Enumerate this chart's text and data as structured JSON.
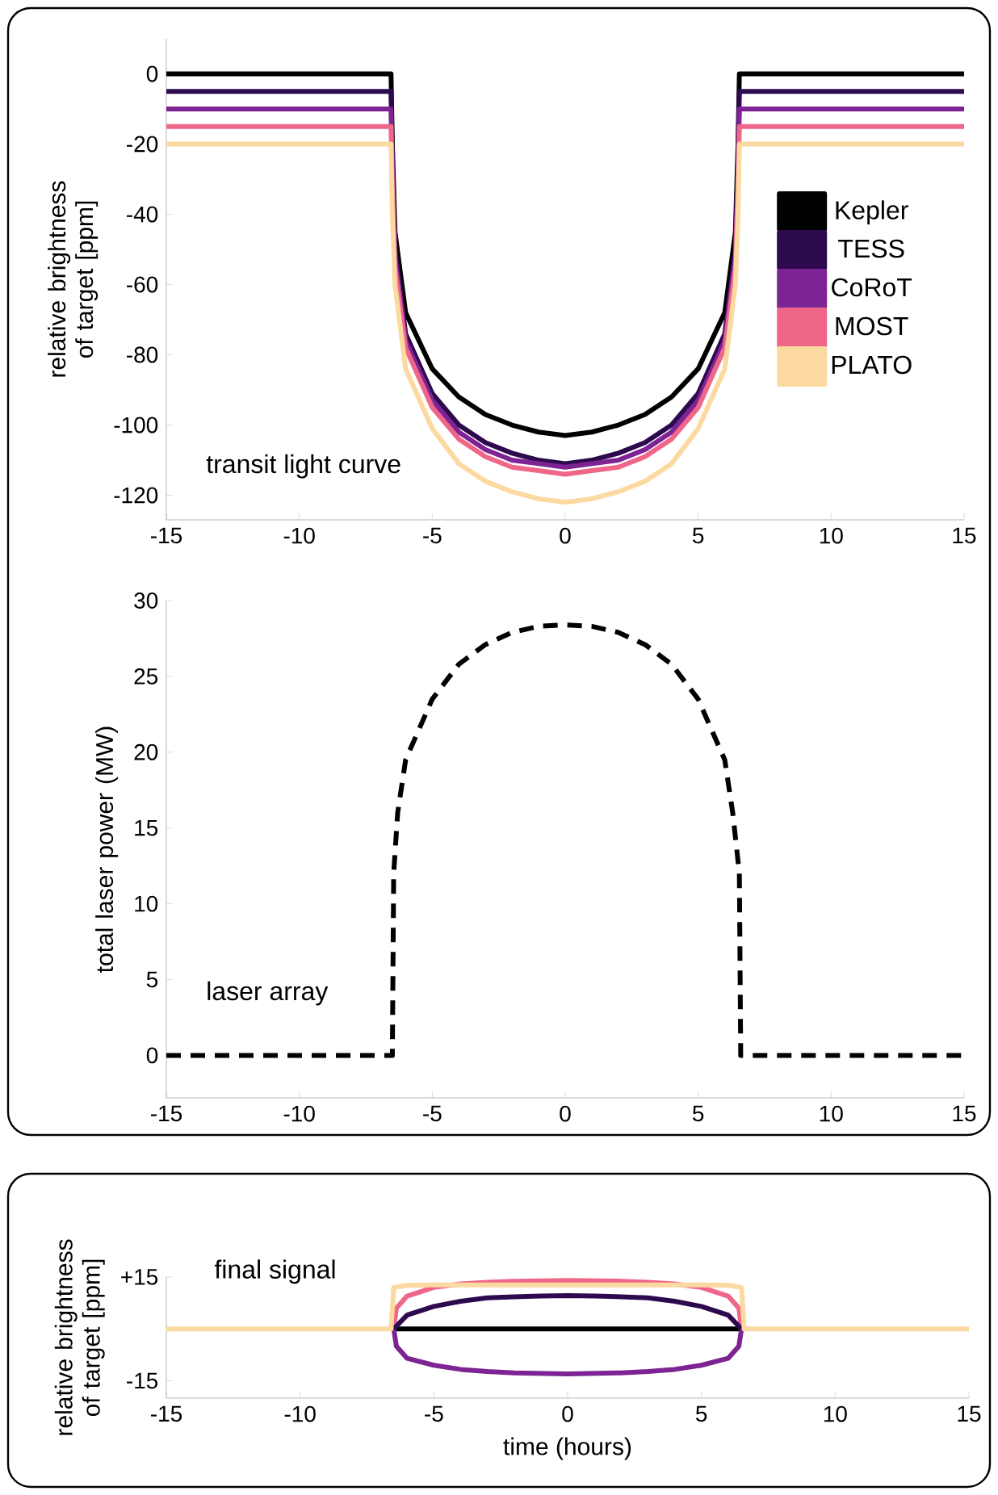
{
  "chart_data": [
    {
      "type": "line",
      "ylabel": "relative brightness of target [ppm]",
      "annotations": [
        "transit light curve"
      ],
      "legend": "right",
      "xlim": [
        -15,
        15
      ],
      "ylim": [
        -127,
        10
      ],
      "xticks": [
        -15,
        -10,
        -5,
        0,
        5,
        10,
        15
      ],
      "yticks": [
        -120,
        -100,
        -80,
        -60,
        -40,
        -20,
        0
      ],
      "x": [
        -15,
        -6.55,
        -6.5,
        -6.4,
        -6,
        -5,
        -4,
        -3,
        -2,
        -1,
        0,
        1,
        2,
        3,
        4,
        5,
        6,
        6.4,
        6.5,
        6.55,
        15
      ],
      "series": [
        {
          "name": "Kepler",
          "color": "#000000",
          "values": [
            0,
            0,
            -20,
            -45,
            -68,
            -84,
            -92,
            -97,
            -100,
            -102,
            -103,
            -102,
            -100,
            -97,
            -92,
            -84,
            -68,
            -45,
            -20,
            0,
            0
          ]
        },
        {
          "name": "TESS",
          "color": "#2d0a4e",
          "values": [
            -5,
            -5,
            -25,
            -50,
            -74,
            -91,
            -100,
            -105,
            -108,
            -110,
            -111,
            -110,
            -108,
            -105,
            -100,
            -91,
            -74,
            -50,
            -25,
            -5,
            -5
          ]
        },
        {
          "name": "CoRoT",
          "color": "#7d2394",
          "values": [
            -10,
            -10,
            -28,
            -52,
            -76,
            -93,
            -102,
            -107,
            -110,
            -111,
            -112,
            -111,
            -110,
            -107,
            -102,
            -93,
            -76,
            -52,
            -28,
            -10,
            -10
          ]
        },
        {
          "name": "MOST",
          "color": "#ef6689",
          "values": [
            -15,
            -15,
            -32,
            -55,
            -78,
            -95,
            -104,
            -109,
            -112,
            -113,
            -114,
            -113,
            -112,
            -109,
            -104,
            -95,
            -78,
            -55,
            -32,
            -15,
            -15
          ]
        },
        {
          "name": "PLATO",
          "color": "#fcd9a0",
          "values": [
            -20,
            -20,
            -40,
            -60,
            -84,
            -101,
            -111,
            -116,
            -119,
            -121,
            -122,
            -121,
            -119,
            -116,
            -111,
            -101,
            -84,
            -60,
            -40,
            -20,
            -20
          ]
        }
      ]
    },
    {
      "type": "line",
      "ylabel": "total laser power (MW)",
      "annotations": [
        "laser array"
      ],
      "line_style": "dashed",
      "xlim": [
        -15,
        15
      ],
      "ylim": [
        -2.8,
        30
      ],
      "xticks": [
        -15,
        -10,
        -5,
        0,
        5,
        10,
        15
      ],
      "yticks": [
        0,
        5,
        10,
        15,
        20,
        25,
        30
      ],
      "x": [
        -15,
        -6.5,
        -6.45,
        -6.3,
        -6,
        -5,
        -4,
        -3,
        -2,
        -1,
        0,
        1,
        2,
        3,
        4,
        5,
        6,
        6.3,
        6.55,
        6.6,
        15
      ],
      "series": [
        {
          "color": "#000000",
          "values": [
            0,
            0,
            12,
            16,
            19.5,
            23.5,
            25.8,
            27.1,
            27.9,
            28.3,
            28.4,
            28.3,
            27.9,
            27.1,
            25.8,
            23.5,
            19.5,
            16,
            12,
            0,
            0
          ]
        }
      ]
    },
    {
      "type": "line",
      "ylabel": "relative brightness of target [ppm]",
      "xlabel": "time (hours)",
      "annotations": [
        "final signal"
      ],
      "xlim": [
        -15,
        15
      ],
      "ylim": [
        -20,
        15
      ],
      "xticks": [
        -15,
        -10,
        -5,
        0,
        5,
        10,
        15
      ],
      "yticks": [
        -15,
        {
          "value": 15,
          "label": "+15"
        }
      ],
      "series": [
        {
          "color": "#000000",
          "x": [
            -6.5,
            6.5
          ],
          "values": [
            0,
            0
          ]
        },
        {
          "color": "#7d2394",
          "x": [
            -6.5,
            -6.4,
            -6,
            -5,
            -4,
            -3,
            -2,
            0,
            2,
            3,
            4,
            5,
            6,
            6.4,
            6.5
          ],
          "values": [
            0,
            -5,
            -8.5,
            -10.5,
            -11.7,
            -12.3,
            -12.7,
            -13,
            -12.7,
            -12.3,
            -11.7,
            -10.5,
            -8.5,
            -5,
            0
          ]
        },
        {
          "color": "#ef6689",
          "x": [
            -6.5,
            -6.4,
            -6,
            -5,
            -4,
            -3,
            -2,
            0,
            2,
            3,
            4,
            5,
            6,
            6.4,
            6.5
          ],
          "values": [
            0,
            6,
            9.5,
            12,
            13,
            13.5,
            13.8,
            14,
            13.8,
            13.5,
            13,
            12,
            9.5,
            6,
            0
          ]
        },
        {
          "color": "#2d0a4e",
          "x": [
            -6.5,
            -6,
            -5,
            -4,
            -3,
            -2,
            -1,
            0,
            1,
            2,
            3,
            4,
            5,
            6,
            6.5
          ],
          "values": [
            0,
            4,
            6.5,
            8,
            9,
            9.3,
            9.5,
            9.6,
            9.5,
            9.3,
            9,
            8,
            6.5,
            4,
            0
          ]
        },
        {
          "color": "#fcd9a0",
          "x": [
            -15,
            -6.6,
            -6.5,
            -6,
            -5,
            0,
            5,
            6,
            6.5,
            6.6,
            15
          ],
          "values": [
            0,
            0,
            12,
            12.6,
            12.7,
            12.7,
            12.7,
            12.6,
            12,
            0,
            0
          ]
        }
      ]
    }
  ]
}
